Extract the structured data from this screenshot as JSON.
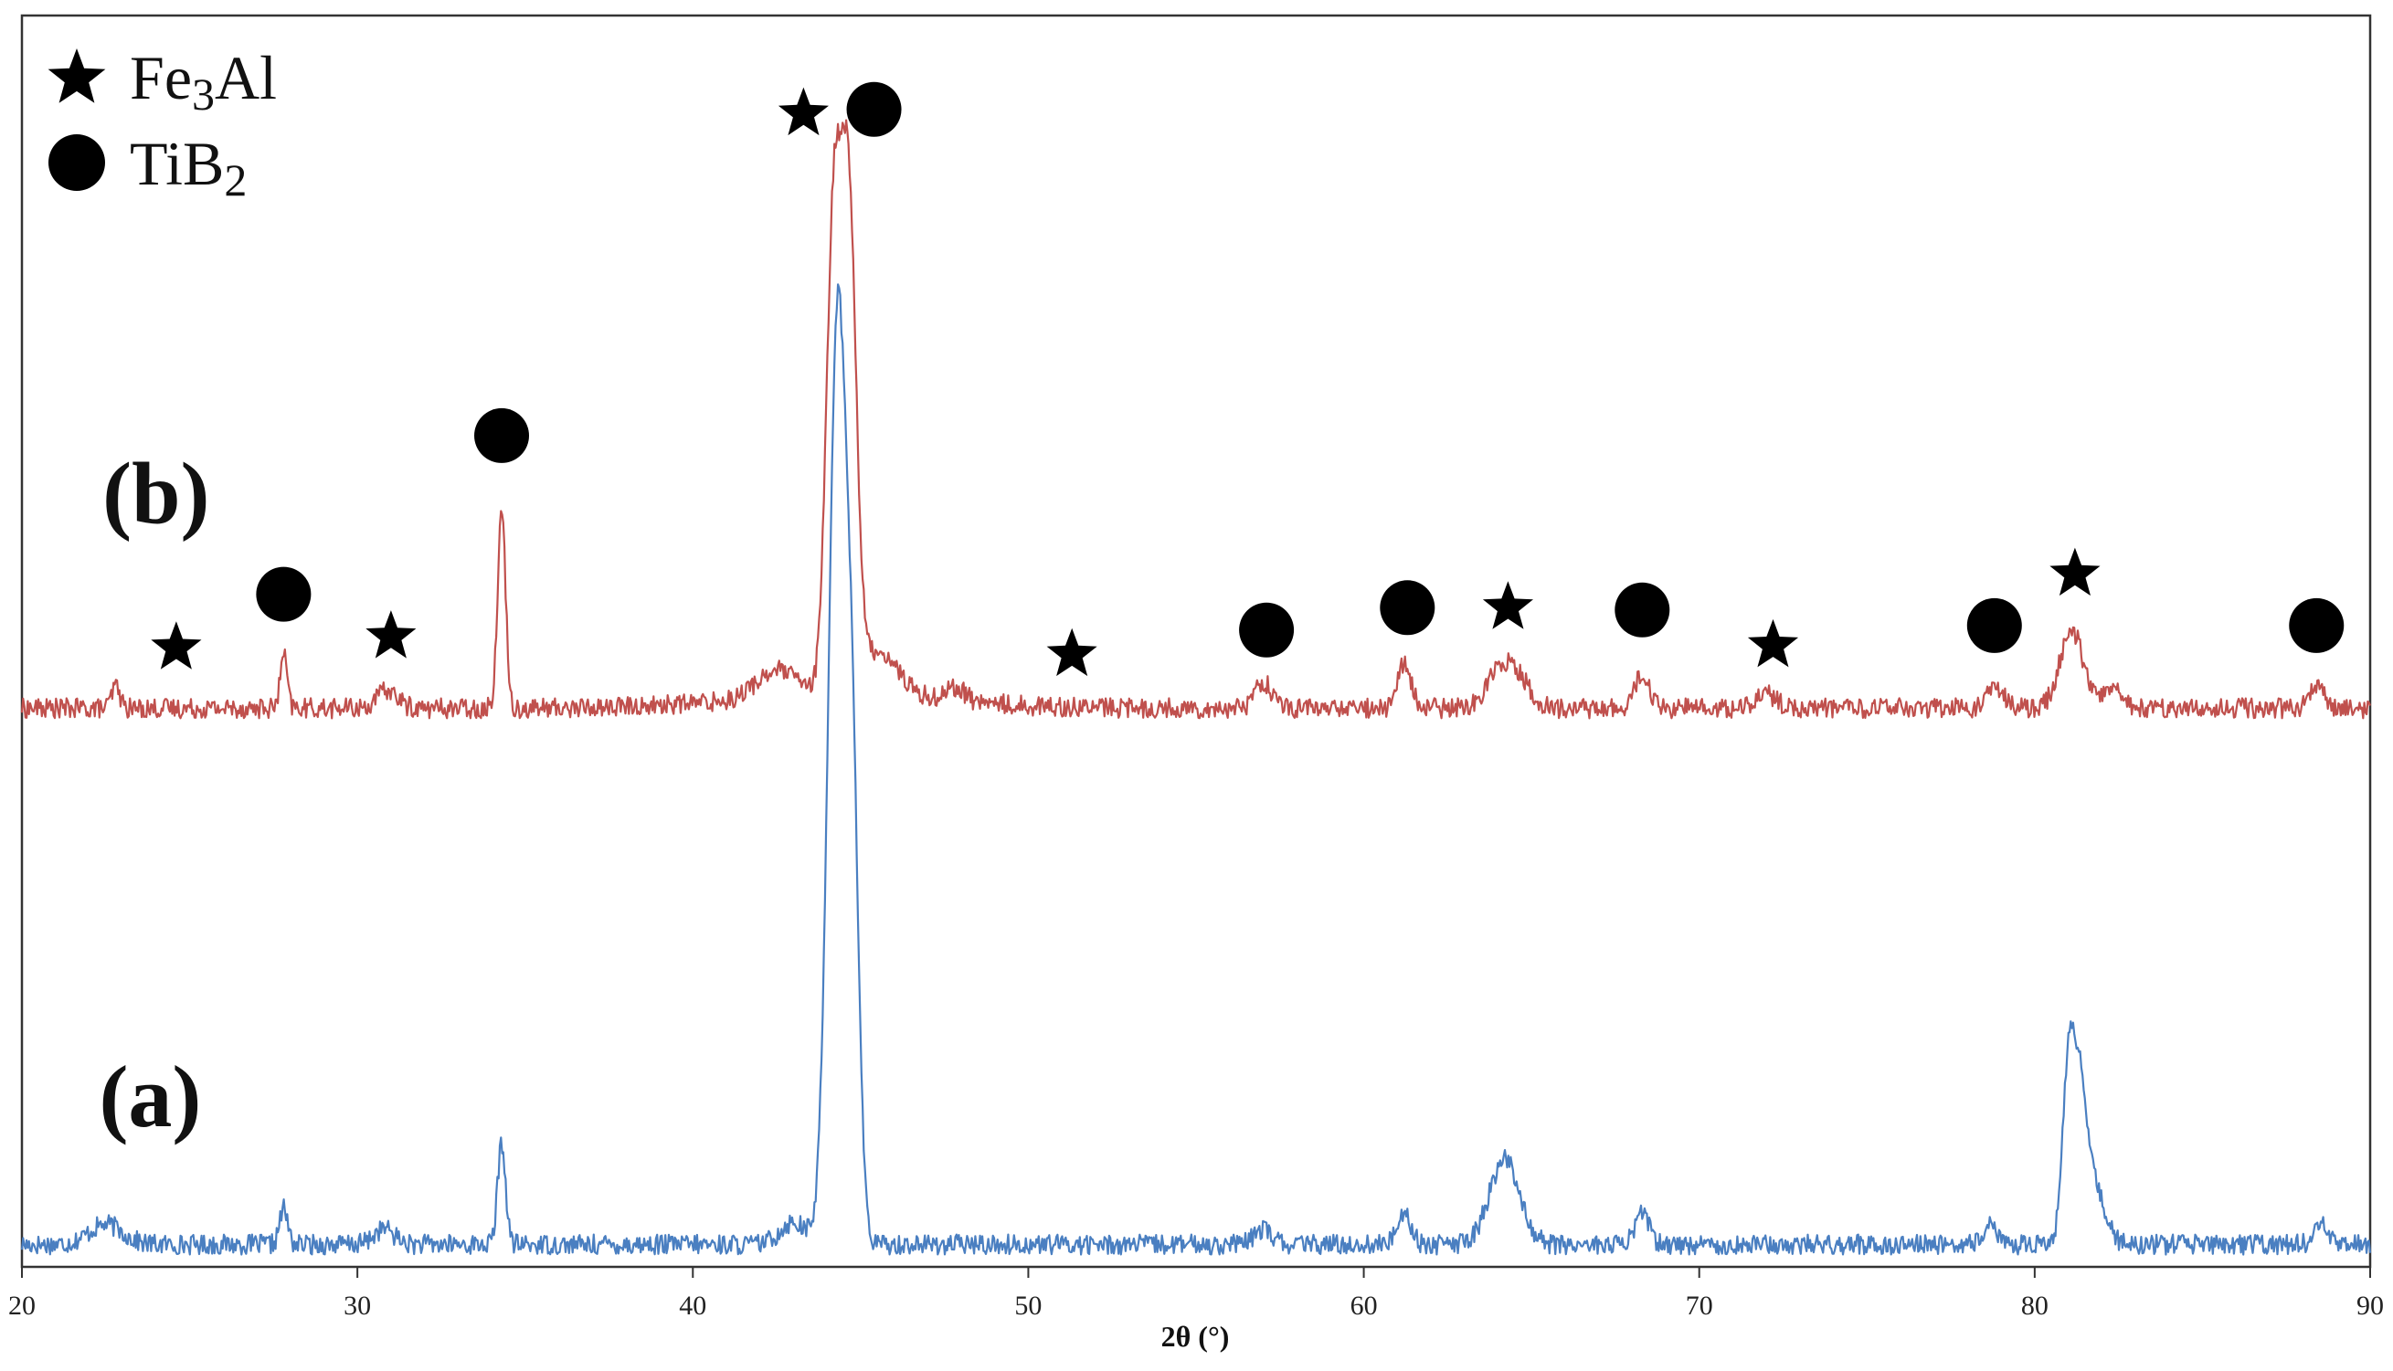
{
  "chart_data": {
    "type": "line",
    "title": "",
    "xlabel": "2θ (°)",
    "ylabel": "",
    "xlim": [
      20,
      90
    ],
    "x_ticks": [
      "20",
      "30",
      "40",
      "50",
      "60",
      "70",
      "80",
      "90"
    ],
    "grid": false,
    "legend": {
      "placement": "top-left",
      "entries": [
        {
          "marker": "star",
          "label_main": "Fe",
          "label_sub": "3",
          "label_tail": "Al"
        },
        {
          "marker": "circle",
          "label_main": "TiB",
          "label_sub": "2",
          "label_tail": ""
        }
      ]
    },
    "series": [
      {
        "name": "(a)",
        "color": "#4a7fc1",
        "baseline": 1.0,
        "peaks": [
          {
            "x": 22.5,
            "height": 0.9,
            "width": 0.5
          },
          {
            "x": 27.8,
            "height": 1.6,
            "width": 0.12
          },
          {
            "x": 30.8,
            "height": 0.7,
            "width": 0.3
          },
          {
            "x": 34.3,
            "height": 4.5,
            "width": 0.12
          },
          {
            "x": 43.0,
            "height": 1.0,
            "width": 0.4
          },
          {
            "x": 44.3,
            "height": 41.0,
            "width": 0.26
          },
          {
            "x": 44.75,
            "height": 18.0,
            "width": 0.2
          },
          {
            "x": 57.0,
            "height": 0.7,
            "width": 0.25
          },
          {
            "x": 61.2,
            "height": 1.5,
            "width": 0.2
          },
          {
            "x": 64.2,
            "height": 3.8,
            "width": 0.45
          },
          {
            "x": 68.3,
            "height": 1.5,
            "width": 0.2
          },
          {
            "x": 78.7,
            "height": 0.8,
            "width": 0.2
          },
          {
            "x": 81.0,
            "height": 7.5,
            "width": 0.18
          },
          {
            "x": 81.35,
            "height": 6.5,
            "width": 0.2
          },
          {
            "x": 81.8,
            "height": 2.5,
            "width": 0.3
          },
          {
            "x": 88.5,
            "height": 0.9,
            "width": 0.2
          }
        ]
      },
      {
        "name": "(b)",
        "color": "#c0504d",
        "baseline": 25.0,
        "peaks": [
          {
            "x": 22.8,
            "height": 1.0,
            "width": 0.12
          },
          {
            "x": 27.8,
            "height": 2.4,
            "width": 0.1
          },
          {
            "x": 30.9,
            "height": 0.8,
            "width": 0.3
          },
          {
            "x": 34.3,
            "height": 8.8,
            "width": 0.12
          },
          {
            "x": 42.5,
            "height": 1.2,
            "width": 0.6
          },
          {
            "x": 44.2,
            "height": 21.0,
            "width": 0.22
          },
          {
            "x": 44.65,
            "height": 21.0,
            "width": 0.22
          },
          {
            "x": 45.5,
            "height": 2.0,
            "width": 0.6
          },
          {
            "x": 47.8,
            "height": 0.6,
            "width": 0.3
          },
          {
            "x": 57.0,
            "height": 1.2,
            "width": 0.25
          },
          {
            "x": 61.2,
            "height": 2.0,
            "width": 0.2
          },
          {
            "x": 64.0,
            "height": 1.7,
            "width": 0.35
          },
          {
            "x": 64.6,
            "height": 1.3,
            "width": 0.35
          },
          {
            "x": 68.3,
            "height": 1.6,
            "width": 0.2
          },
          {
            "x": 72.0,
            "height": 0.6,
            "width": 0.3
          },
          {
            "x": 78.8,
            "height": 1.0,
            "width": 0.25
          },
          {
            "x": 81.1,
            "height": 3.5,
            "width": 0.35
          },
          {
            "x": 82.3,
            "height": 1.0,
            "width": 0.25
          },
          {
            "x": 88.4,
            "height": 1.0,
            "width": 0.2
          }
        ]
      }
    ],
    "annotations": [
      {
        "type": "panel_label",
        "text": "(b)",
        "x": 22.4,
        "y": 33.3
      },
      {
        "type": "panel_label",
        "text": "(a)",
        "x": 22.3,
        "y": 6.3
      },
      {
        "type": "marker",
        "phase": "Fe3Al",
        "symbol": "star",
        "x": 24.6,
        "y": 27.7
      },
      {
        "type": "marker",
        "phase": "TiB2",
        "symbol": "circle",
        "x": 27.8,
        "y": 30.1
      },
      {
        "type": "marker",
        "phase": "Fe3Al",
        "symbol": "star",
        "x": 31.0,
        "y": 28.2
      },
      {
        "type": "marker",
        "phase": "TiB2",
        "symbol": "circle",
        "x": 34.3,
        "y": 37.2
      },
      {
        "type": "marker",
        "phase": "Fe3Al",
        "symbol": "star",
        "x": 43.3,
        "y": 51.6
      },
      {
        "type": "marker",
        "phase": "TiB2",
        "symbol": "circle",
        "x": 45.4,
        "y": 51.8
      },
      {
        "type": "marker",
        "phase": "Fe3Al",
        "symbol": "star",
        "x": 51.3,
        "y": 27.4
      },
      {
        "type": "marker",
        "phase": "TiB2",
        "symbol": "circle",
        "x": 57.1,
        "y": 28.5
      },
      {
        "type": "marker",
        "phase": "TiB2",
        "symbol": "circle",
        "x": 61.3,
        "y": 29.5
      },
      {
        "type": "marker",
        "phase": "Fe3Al",
        "symbol": "star",
        "x": 64.3,
        "y": 29.5
      },
      {
        "type": "marker",
        "phase": "TiB2",
        "symbol": "circle",
        "x": 68.3,
        "y": 29.4
      },
      {
        "type": "marker",
        "phase": "Fe3Al",
        "symbol": "star",
        "x": 72.2,
        "y": 27.8
      },
      {
        "type": "marker",
        "phase": "TiB2",
        "symbol": "circle",
        "x": 78.8,
        "y": 28.7
      },
      {
        "type": "marker",
        "phase": "Fe3Al",
        "symbol": "star",
        "x": 81.2,
        "y": 31.0
      },
      {
        "type": "marker",
        "phase": "TiB2",
        "symbol": "circle",
        "x": 88.4,
        "y": 28.7
      }
    ]
  }
}
